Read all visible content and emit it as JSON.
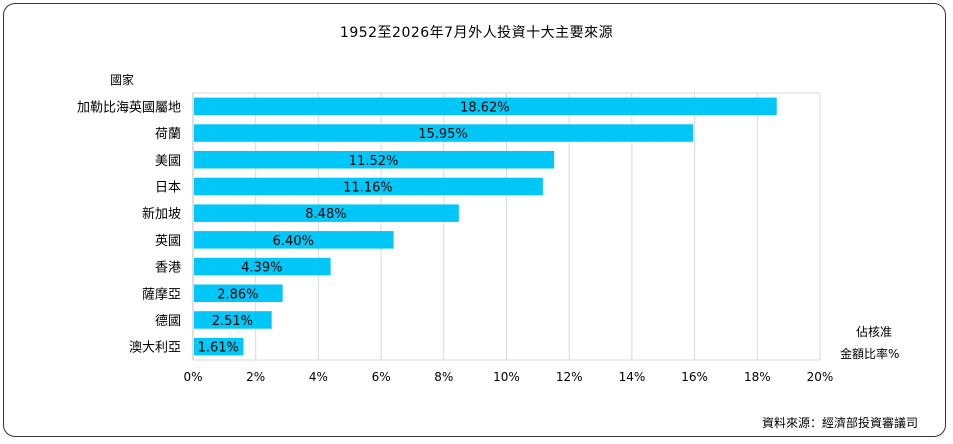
{
  "chart_data": {
    "type": "bar",
    "orientation": "horizontal",
    "title": "1952至2026年7月外人投資十大主要來源",
    "ylabel": "國家",
    "xlabel_line1": "佔核准",
    "xlabel_line2": "金額比率%",
    "categories": [
      "加勒比海英國屬地",
      "荷蘭",
      "美國",
      "日本",
      "新加坡",
      "英國",
      "香港",
      "薩摩亞",
      "德國",
      "澳大利亞"
    ],
    "values": [
      18.62,
      15.95,
      11.52,
      11.16,
      8.48,
      6.4,
      4.39,
      2.86,
      2.51,
      1.61
    ],
    "data_labels": [
      "18.62%",
      "15.95%",
      "11.52%",
      "11.16%",
      "8.48%",
      "6.40%",
      "4.39%",
      "2.86%",
      "2.51%",
      "1.61%"
    ],
    "xticks": [
      "0%",
      "2%",
      "4%",
      "6%",
      "8%",
      "10%",
      "12%",
      "14%",
      "16%",
      "18%",
      "20%"
    ],
    "xlim": [
      0,
      20
    ],
    "grid": true,
    "bar_color": "#00c7f7",
    "source": "資料來源：經濟部投資審議司"
  }
}
